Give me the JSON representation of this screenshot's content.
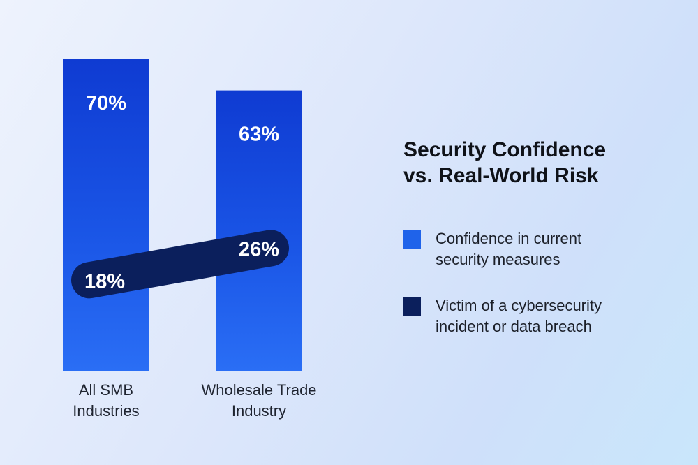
{
  "title_lines": [
    "Security Confidence",
    "vs. Real-World Risk"
  ],
  "legend": [
    {
      "lines": [
        "Confidence in current",
        "security measures"
      ],
      "color": "#1f63ea"
    },
    {
      "lines": [
        "Victim of a cybersecurity",
        "incident or data breach"
      ],
      "color": "#0b1f5c"
    }
  ],
  "chart_data": {
    "type": "bar",
    "categories": [
      [
        "All SMB",
        "Industries"
      ],
      [
        "Wholesale Trade",
        "Industry"
      ]
    ],
    "series": [
      {
        "name": "Confidence in current security measures",
        "values": [
          70,
          63
        ],
        "labels": [
          "70%",
          "63%"
        ],
        "render": "bar",
        "color": "#1f63ea"
      },
      {
        "name": "Victim of a cybersecurity incident or data breach",
        "values": [
          18,
          26
        ],
        "labels": [
          "18%",
          "26%"
        ],
        "render": "line",
        "color": "#0b1f5c"
      }
    ],
    "ylim": [
      0,
      70
    ]
  }
}
